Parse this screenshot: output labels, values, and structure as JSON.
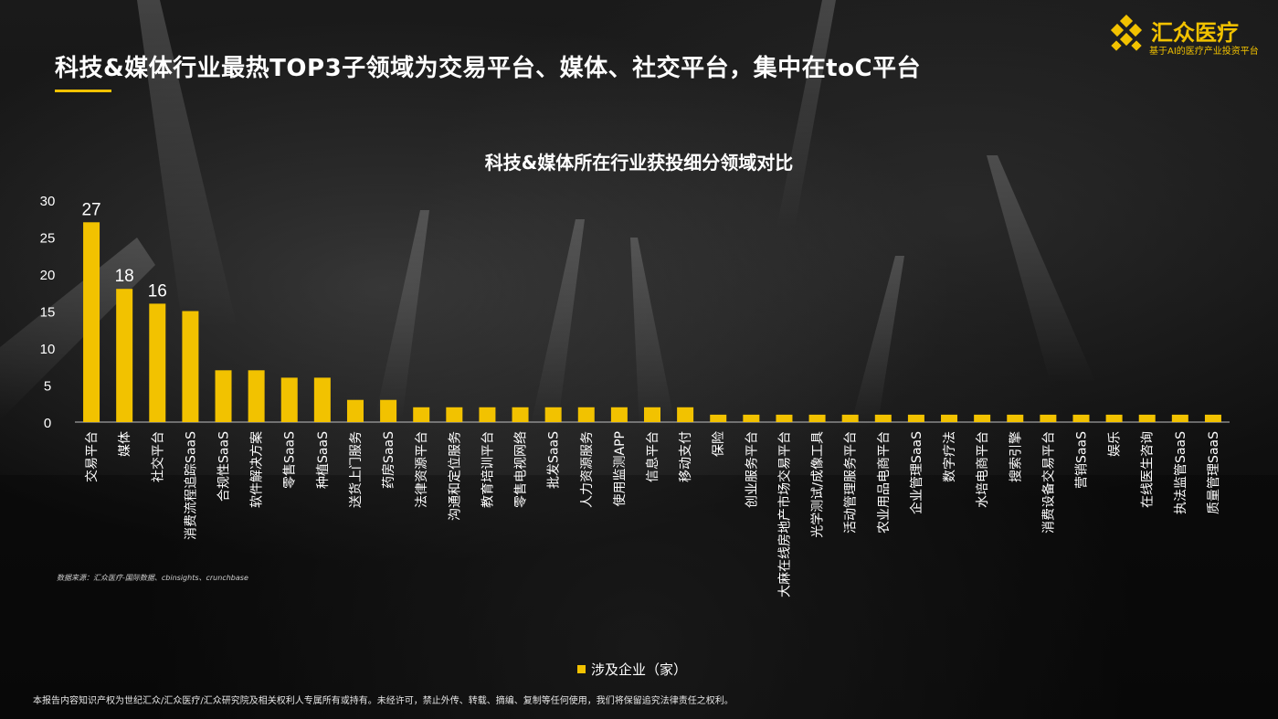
{
  "header": {
    "title": "科技&媒体行业最热TOP3子领域为交易平台、媒体、社交平台，集中在toC平台",
    "logo_name": "汇众医疗",
    "logo_subtitle": "基于AI的医疗产业投资平台"
  },
  "colors": {
    "accent": "#f2c200"
  },
  "chart_data": {
    "type": "bar",
    "title": "科技&媒体所在行业获投细分领域对比",
    "categories": [
      "交易平台",
      "媒体",
      "社交平台",
      "消费流程追踪SaaS",
      "合规性SaaS",
      "软件解决方案",
      "零售SaaS",
      "种植SaaS",
      "送货上门服务",
      "药房SaaS",
      "法律资源平台",
      "沟通和定位服务",
      "教育培训平台",
      "零售电视网络",
      "批发SaaS",
      "人力资源服务",
      "使用监测APP",
      "信息平台",
      "移动支付",
      "保险",
      "创业服务平台",
      "大麻在线房地产市场交易平台",
      "光学测试/成像工具",
      "活动管理服务平台",
      "农业用品电商平台",
      "企业管理SaaS",
      "数字疗法",
      "水培电商平台",
      "搜索引擎",
      "消费设备交易平台",
      "营销SaaS",
      "娱乐",
      "在线医生咨询",
      "执法监管SaaS",
      "质量管理SaaS"
    ],
    "series": [
      {
        "name": "涉及企业（家）",
        "values": [
          27,
          18,
          16,
          15,
          7,
          7,
          6,
          6,
          3,
          3,
          2,
          2,
          2,
          2,
          2,
          2,
          2,
          2,
          2,
          1,
          1,
          1,
          1,
          1,
          1,
          1,
          1,
          1,
          1,
          1,
          1,
          1,
          1,
          1,
          1
        ]
      }
    ],
    "data_labels": [
      "27",
      "18",
      "16"
    ],
    "yticks": [
      "0",
      "5",
      "10",
      "15",
      "20",
      "25",
      "30"
    ],
    "ylim": [
      0,
      30
    ],
    "grid": false,
    "legend": "bottom-center"
  },
  "source_text": "数据来源：汇众医疗-国际数据、cbinsights、crunchbase",
  "footer_text": "本报告内容知识产权为世纪汇众/汇众医疗/汇众研究院及相关权利人专属所有或持有。未经许可，禁止外传、转载、摘编、复制等任何使用，我们将保留追究法律责任之权利。"
}
